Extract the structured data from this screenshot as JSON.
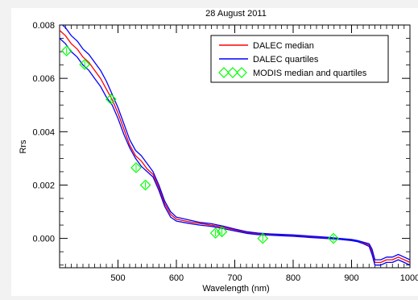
{
  "chart_data": {
    "type": "line",
    "title": "28 August 2011",
    "xlabel": "Wavelength (nm)",
    "ylabel": "Rrs",
    "xlim": [
      400,
      1000
    ],
    "ylim": [
      -0.0011,
      0.008
    ],
    "x_ticks": [
      500,
      600,
      700,
      800,
      900,
      1000
    ],
    "x_tick_labels": [
      "500",
      "600",
      "700",
      "800",
      "900",
      "1000"
    ],
    "y_ticks": [
      0.0,
      0.002,
      0.004,
      0.006,
      0.008
    ],
    "y_tick_labels": [
      "0.000",
      "0.002",
      "0.004",
      "0.006",
      "0.008"
    ],
    "legend_position": "top-right",
    "legend": [
      {
        "label": "DALEC median",
        "color": "#ff0000",
        "style": "line"
      },
      {
        "label": "DALEC quartiles",
        "color": "#0000ff",
        "style": "line"
      },
      {
        "label": "MODIS median and quartiles",
        "color": "#00ff00",
        "style": "diamond"
      }
    ],
    "series": [
      {
        "name": "DALEC median",
        "color": "#ff0000",
        "x": [
          400,
          410,
          420,
          430,
          440,
          450,
          460,
          470,
          480,
          490,
          500,
          510,
          520,
          530,
          540,
          550,
          560,
          570,
          580,
          590,
          600,
          620,
          640,
          660,
          680,
          700,
          720,
          740,
          760,
          780,
          800,
          820,
          840,
          860,
          880,
          900,
          910,
          920,
          930,
          935,
          940,
          950,
          960,
          970,
          980,
          990,
          1000
        ],
        "y": [
          0.0078,
          0.0076,
          0.0073,
          0.0071,
          0.0068,
          0.0066,
          0.0063,
          0.006,
          0.0056,
          0.0052,
          0.0047,
          0.0041,
          0.0035,
          0.0031,
          0.0029,
          0.0026,
          0.0024,
          0.0019,
          0.0013,
          0.0009,
          0.00072,
          0.00063,
          0.00056,
          0.0005,
          0.00042,
          0.00032,
          0.00022,
          0.00017,
          0.00015,
          0.00013,
          0.00011,
          8e-05,
          5e-05,
          2e-05,
          -2e-05,
          -6e-05,
          -0.0001,
          -0.00017,
          -0.00025,
          -0.0005,
          -0.0009,
          -0.0009,
          -0.0008,
          -0.0008,
          -0.0007,
          -0.0008,
          -0.0009
        ]
      },
      {
        "name": "DALEC quartiles",
        "color": "#0000ff",
        "x": [
          400,
          410,
          420,
          430,
          440,
          450,
          460,
          470,
          480,
          490,
          500,
          510,
          520,
          530,
          540,
          550,
          560,
          570,
          580,
          590,
          600,
          620,
          640,
          660,
          680,
          700,
          720,
          740,
          760,
          780,
          800,
          820,
          840,
          860,
          880,
          900,
          910,
          920,
          930,
          935,
          940,
          950,
          960,
          970,
          980,
          990,
          1000
        ],
        "y": [
          0.0081,
          0.0079,
          0.0076,
          0.0074,
          0.0071,
          0.0069,
          0.0066,
          0.0063,
          0.0059,
          0.0054,
          0.0049,
          0.0043,
          0.0037,
          0.0033,
          0.0031,
          0.0028,
          0.0025,
          0.002,
          0.0014,
          0.001,
          0.0008,
          0.0007,
          0.0006,
          0.00055,
          0.00046,
          0.00035,
          0.00025,
          0.0002,
          0.00017,
          0.00015,
          0.00013,
          0.0001,
          7e-05,
          4e-05,
          0.0,
          -4e-05,
          -8e-05,
          -0.00014,
          -0.0002,
          -0.0004,
          -0.0008,
          -0.0008,
          -0.0007,
          -0.0007,
          -0.0006,
          -0.0007,
          -0.0008
        ]
      },
      {
        "name": "DALEC quartiles",
        "color": "#0000ff",
        "x": [
          400,
          410,
          420,
          430,
          440,
          450,
          460,
          470,
          480,
          490,
          500,
          510,
          520,
          530,
          540,
          550,
          560,
          570,
          580,
          590,
          600,
          620,
          640,
          660,
          680,
          700,
          720,
          740,
          760,
          780,
          800,
          820,
          840,
          860,
          880,
          900,
          910,
          920,
          930,
          935,
          940,
          950,
          960,
          970,
          980,
          990,
          1000
        ],
        "y": [
          0.0075,
          0.0073,
          0.007,
          0.0068,
          0.0065,
          0.0063,
          0.006,
          0.0057,
          0.0053,
          0.005,
          0.0045,
          0.0039,
          0.0034,
          0.003,
          0.0027,
          0.0025,
          0.0023,
          0.0018,
          0.0012,
          0.0008,
          0.00065,
          0.00057,
          0.0005,
          0.00045,
          0.00037,
          0.00028,
          0.00019,
          0.00014,
          0.00012,
          0.0001,
          8e-05,
          5e-05,
          2e-05,
          -1e-05,
          -4e-05,
          -8e-05,
          -0.00012,
          -0.0002,
          -0.0003,
          -0.0006,
          -0.001,
          -0.001,
          -0.0009,
          -0.0009,
          -0.0008,
          -0.0009,
          -0.001
        ]
      },
      {
        "name": "MODIS median and quartiles",
        "color": "#00ff00",
        "marker": "diamond",
        "x": [
          412,
          443,
          488,
          531,
          547,
          667,
          678,
          748,
          869
        ],
        "y": [
          0.00703,
          0.00652,
          0.00522,
          0.00265,
          0.002,
          0.0002,
          0.00025,
          0.0,
          0.0
        ]
      }
    ]
  }
}
